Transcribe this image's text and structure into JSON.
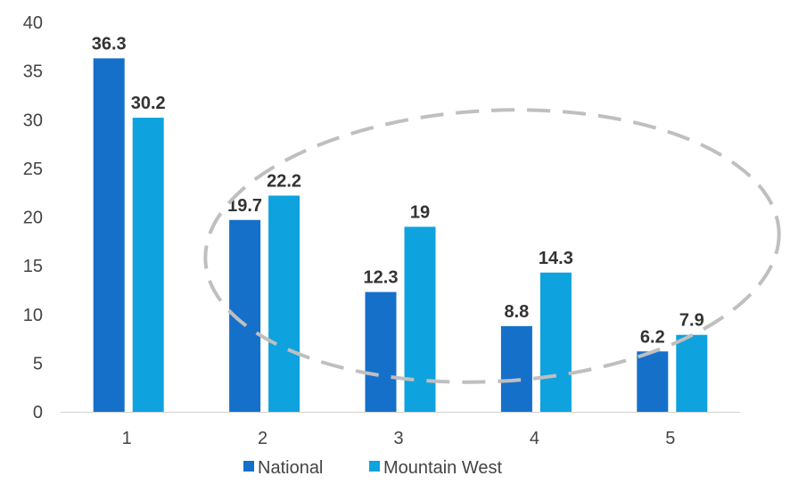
{
  "chart_data": {
    "type": "bar",
    "categories": [
      "1",
      "2",
      "3",
      "4",
      "5"
    ],
    "series": [
      {
        "name": "National",
        "values": [
          36.3,
          19.7,
          12.3,
          8.8,
          6.2
        ],
        "color": "#1570C9"
      },
      {
        "name": "Mountain West",
        "values": [
          30.2,
          22.2,
          19,
          14.3,
          7.9
        ],
        "color": "#0EA2DE"
      }
    ],
    "data_labels": [
      [
        "36.3",
        "19.7",
        "12.3",
        "8.8",
        "6.2"
      ],
      [
        "30.2",
        "22.2",
        "19",
        "14.3",
        "7.9"
      ]
    ],
    "y_ticks": [
      "0",
      "5",
      "10",
      "15",
      "20",
      "25",
      "30",
      "35",
      "40"
    ],
    "ylim": [
      0,
      40
    ],
    "grid": false,
    "legend": "bottom",
    "annotation": {
      "shape": "dashed-ellipse",
      "color": "#BFBFBF",
      "highlights": [
        "2",
        "3",
        "4",
        "5"
      ]
    }
  }
}
